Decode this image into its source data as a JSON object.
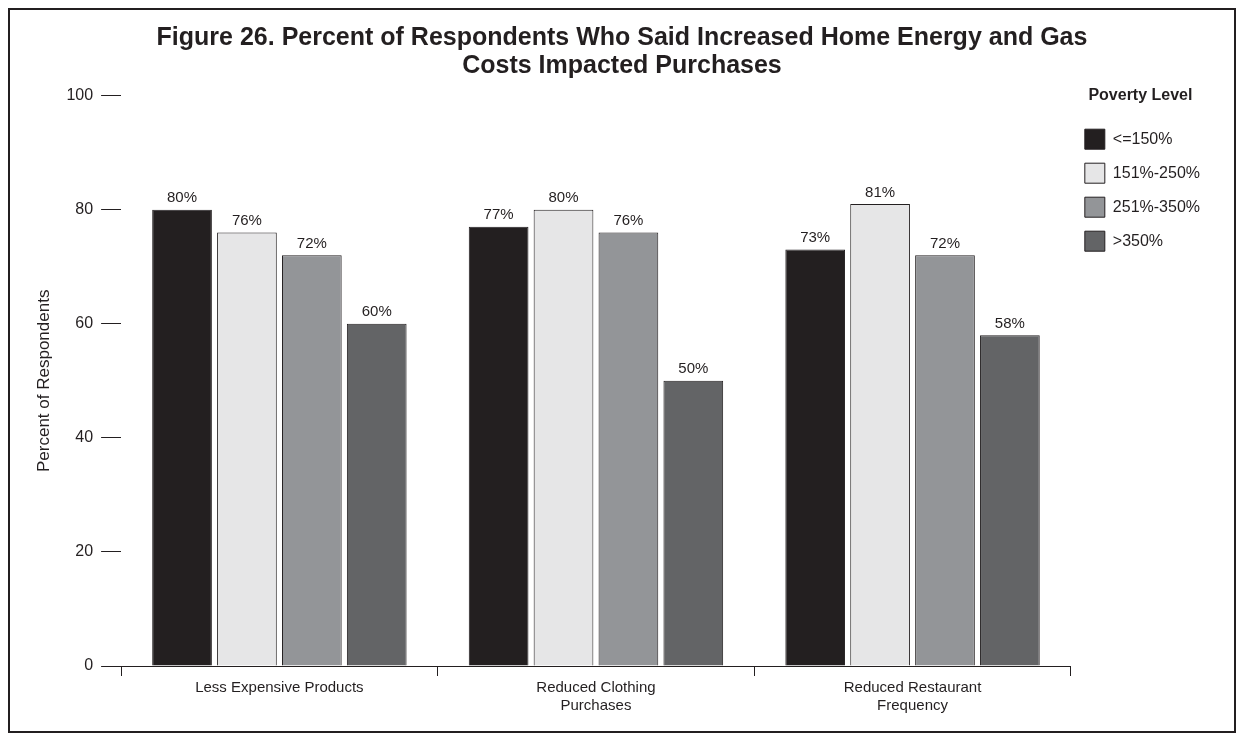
{
  "chart_data": {
    "type": "bar",
    "title": "Figure 26.  Percent of Respondents Who Said Increased Home Energy and Gas Costs Impacted Purchases",
    "ylabel": "Percent of Respondents",
    "legend_title": "Poverty Level",
    "categories": [
      "Less Expensive Products",
      "Reduced Clothing Purchases",
      "Reduced Restaurant Frequency"
    ],
    "series": [
      {
        "name": "<=150%",
        "color": "#231f20",
        "values": [
          80,
          77,
          73
        ],
        "value_labels": [
          "80%",
          "77%",
          "73%"
        ]
      },
      {
        "name": "151%-250%",
        "color": "#e6e6e7",
        "values": [
          76,
          80,
          81
        ],
        "value_labels": [
          "76%",
          "80%",
          "81%"
        ]
      },
      {
        "name": "251%-350%",
        "color": "#939598",
        "values": [
          72,
          76,
          72
        ],
        "value_labels": [
          "72%",
          "76%",
          "72%"
        ]
      },
      {
        "name": ">350%",
        "color": "#636466",
        "values": [
          60,
          50,
          58
        ],
        "value_labels": [
          "60%",
          "50%",
          "58%"
        ]
      }
    ],
    "ylim": [
      0,
      100
    ],
    "yticks": [
      0,
      20,
      40,
      60,
      80,
      100
    ],
    "grid": false,
    "legend": "top right"
  }
}
